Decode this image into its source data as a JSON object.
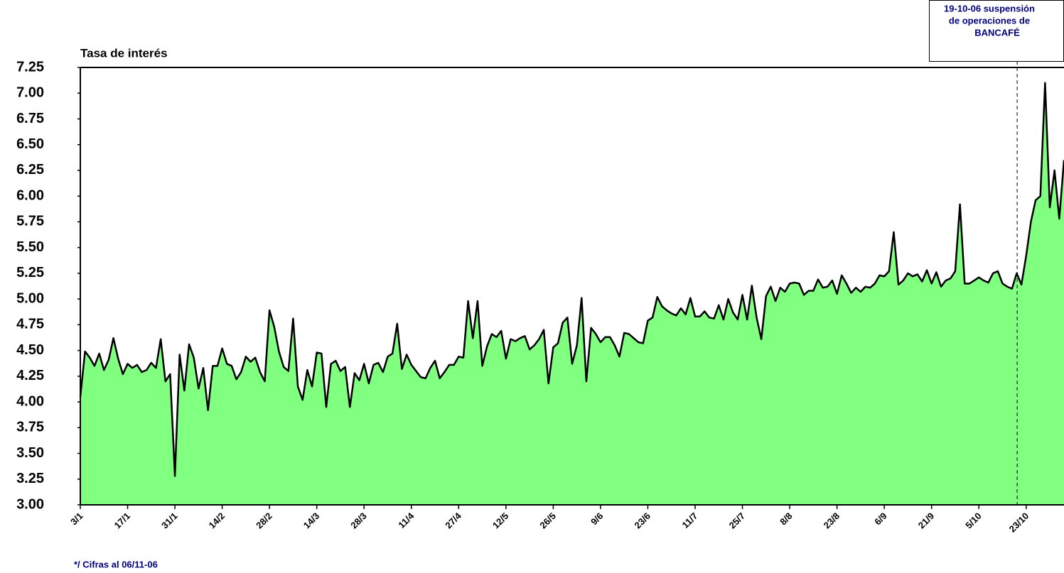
{
  "chart_data": {
    "type": "area",
    "title": "Tasa de interés",
    "annotation": [
      "19-10-06 suspensión",
      "de operaciones de",
      "BANCAFÉ"
    ],
    "footnote": "*/ Cifras al 06/11-06",
    "categories": [
      "3/1",
      null,
      null,
      null,
      null,
      null,
      null,
      null,
      null,
      null,
      "17/1",
      null,
      null,
      null,
      null,
      null,
      null,
      null,
      null,
      null,
      "31/1",
      null,
      null,
      null,
      null,
      null,
      null,
      null,
      null,
      null,
      "14/2",
      null,
      null,
      null,
      null,
      null,
      null,
      null,
      null,
      null,
      "28/2",
      null,
      null,
      null,
      null,
      null,
      null,
      null,
      null,
      null,
      "14/3",
      null,
      null,
      null,
      null,
      null,
      null,
      null,
      null,
      null,
      "28/3",
      null,
      null,
      null,
      null,
      null,
      null,
      null,
      null,
      null,
      "11/4",
      null,
      null,
      null,
      null,
      null,
      null,
      null,
      null,
      null,
      "27/4",
      null,
      null,
      null,
      null,
      null,
      null,
      null,
      null,
      null,
      "12/5",
      null,
      null,
      null,
      null,
      null,
      null,
      null,
      null,
      null,
      "26/5",
      null,
      null,
      null,
      null,
      null,
      null,
      null,
      null,
      null,
      "9/6",
      null,
      null,
      null,
      null,
      null,
      null,
      null,
      null,
      null,
      "23/6",
      null,
      null,
      null,
      null,
      null,
      null,
      null,
      null,
      null,
      "11/7",
      null,
      null,
      null,
      null,
      null,
      null,
      null,
      null,
      null,
      "25/7",
      null,
      null,
      null,
      null,
      null,
      null,
      null,
      null,
      null,
      "8/8",
      null,
      null,
      null,
      null,
      null,
      null,
      null,
      null,
      null,
      "23/8",
      null,
      null,
      null,
      null,
      null,
      null,
      null,
      null,
      null,
      "6/9",
      null,
      null,
      null,
      null,
      null,
      null,
      null,
      null,
      null,
      "21/9",
      null,
      null,
      null,
      null,
      null,
      null,
      null,
      null,
      null,
      "5/10",
      null,
      null,
      null,
      null,
      null,
      null,
      null,
      null,
      null,
      "23/10",
      null,
      null,
      null,
      null,
      null,
      null,
      null,
      null
    ],
    "color": "#80ff80",
    "line_color": "#000000",
    "values": [
      4.05,
      4.49,
      4.43,
      4.35,
      4.47,
      4.31,
      4.41,
      4.62,
      4.42,
      4.27,
      4.37,
      4.33,
      4.36,
      4.29,
      4.31,
      4.38,
      4.33,
      4.61,
      4.2,
      4.27,
      3.28,
      4.46,
      4.11,
      4.56,
      4.43,
      4.13,
      4.33,
      3.92,
      4.35,
      4.35,
      4.52,
      4.37,
      4.35,
      4.22,
      4.29,
      4.44,
      4.39,
      4.43,
      4.29,
      4.2,
      4.89,
      4.73,
      4.49,
      4.34,
      4.3,
      4.81,
      4.15,
      4.02,
      4.31,
      4.15,
      4.48,
      4.47,
      3.95,
      4.37,
      4.4,
      4.3,
      4.34,
      3.95,
      4.28,
      4.21,
      4.37,
      4.18,
      4.36,
      4.38,
      4.29,
      4.44,
      4.47,
      4.76,
      4.32,
      4.46,
      4.36,
      4.3,
      4.24,
      4.23,
      4.33,
      4.4,
      4.23,
      4.29,
      4.36,
      4.36,
      4.44,
      4.43,
      4.98,
      4.62,
      4.98,
      4.35,
      4.54,
      4.66,
      4.63,
      4.69,
      4.42,
      4.61,
      4.59,
      4.62,
      4.64,
      4.51,
      4.55,
      4.61,
      4.7,
      4.18,
      4.53,
      4.57,
      4.77,
      4.82,
      4.37,
      4.55,
      5.01,
      4.2,
      4.72,
      4.66,
      4.58,
      4.63,
      4.63,
      4.55,
      4.44,
      4.67,
      4.66,
      4.62,
      4.58,
      4.57,
      4.79,
      4.82,
      5.02,
      4.93,
      4.89,
      4.86,
      4.84,
      4.91,
      4.85,
      5.01,
      4.83,
      4.83,
      4.88,
      4.82,
      4.81,
      4.94,
      4.8,
      5.0,
      4.87,
      4.8,
      5.04,
      4.8,
      5.13,
      4.82,
      4.61,
      5.03,
      5.12,
      4.98,
      5.11,
      5.07,
      5.15,
      5.16,
      5.15,
      5.04,
      5.08,
      5.08,
      5.19,
      5.11,
      5.12,
      5.18,
      5.05,
      5.23,
      5.15,
      5.06,
      5.11,
      5.07,
      5.12,
      5.11,
      5.15,
      5.23,
      5.22,
      5.27,
      5.65,
      5.14,
      5.18,
      5.25,
      5.22,
      5.24,
      5.17,
      5.28,
      5.15,
      5.26,
      5.12,
      5.18,
      5.2,
      5.27,
      5.92,
      5.15,
      5.15,
      5.18,
      5.21,
      5.18,
      5.16,
      5.25,
      5.27,
      5.15,
      5.12,
      5.1,
      5.25,
      5.14,
      5.42,
      5.75,
      5.96,
      6.0,
      7.1,
      5.89,
      6.25,
      5.78,
      6.35
    ],
    "ylim": [
      3,
      7.25
    ],
    "yticks": [
      {
        "value": 3,
        "label": "3.00"
      },
      {
        "value": 3.25,
        "label": "3.25"
      },
      {
        "value": 3.5,
        "label": "3.50"
      },
      {
        "value": 3.75,
        "label": "3.75"
      },
      {
        "value": 4,
        "label": "4.00"
      },
      {
        "value": 4.25,
        "label": "4.25"
      },
      {
        "value": 4.5,
        "label": "4.50"
      },
      {
        "value": 4.75,
        "label": "4.75"
      },
      {
        "value": 5,
        "label": "5.00"
      },
      {
        "value": 5.25,
        "label": "5.25"
      },
      {
        "value": 5.5,
        "label": "5.50"
      },
      {
        "value": 5.75,
        "label": "5.75"
      },
      {
        "value": 6,
        "label": "6.00"
      },
      {
        "value": 6.25,
        "label": "6.25"
      },
      {
        "value": 6.5,
        "label": "6.50"
      },
      {
        "value": 6.75,
        "label": "6.75"
      },
      {
        "value": 7,
        "label": "7.00"
      },
      {
        "value": 7.25,
        "label": "7.25"
      }
    ],
    "grid": false
  }
}
